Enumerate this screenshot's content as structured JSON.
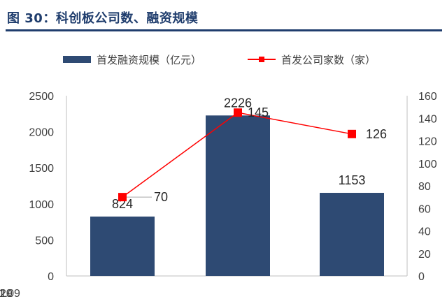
{
  "figure_title": "图 30：科创板公司数、融资规模",
  "chart_data": {
    "type": "bar+line",
    "categories": [
      "2019",
      "2020",
      "2021.09"
    ],
    "series": [
      {
        "name": "首发融资规模（亿元）",
        "type": "bar",
        "axis": "left",
        "color": "#2e4a73",
        "values": [
          824,
          2226,
          1153
        ],
        "data_labels": [
          "824",
          "2226",
          "1153"
        ]
      },
      {
        "name": "首发公司家数（家）",
        "type": "line",
        "axis": "right",
        "color": "#ff0000",
        "values": [
          70,
          145,
          126
        ],
        "data_labels": [
          "70",
          "145",
          "126"
        ]
      }
    ],
    "y_left": {
      "range": [
        0,
        2500
      ],
      "ticks": [
        "0",
        "500",
        "1000",
        "1500",
        "2000",
        "2500"
      ]
    },
    "y_right": {
      "range": [
        0,
        160
      ],
      "ticks": [
        "0",
        "20",
        "40",
        "60",
        "80",
        "100",
        "120",
        "140",
        "160"
      ]
    },
    "legend_position": "top",
    "grid": false
  }
}
